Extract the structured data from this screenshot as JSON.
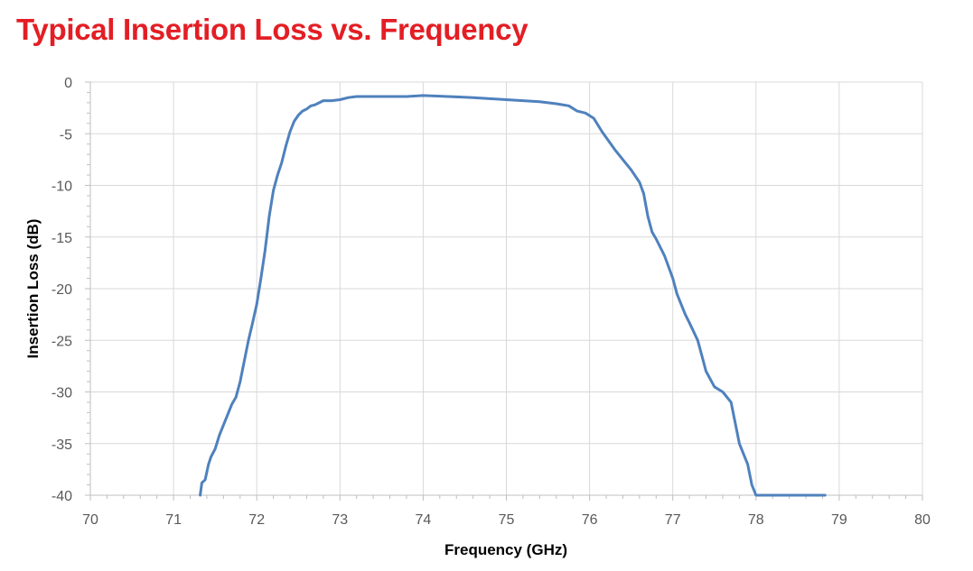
{
  "chart_data": {
    "type": "line",
    "title": "Typical Insertion Loss vs. Frequency",
    "xlabel": "Frequency (GHz)",
    "ylabel": "Insertion Loss (dB)",
    "xlim": [
      70,
      80
    ],
    "ylim": [
      -40,
      0
    ],
    "xticks": [
      "70",
      "71",
      "72",
      "73",
      "74",
      "75",
      "76",
      "77",
      "78",
      "79",
      "80"
    ],
    "yticks": [
      "0",
      "-5",
      "-10",
      "-15",
      "-20",
      "-25",
      "-30",
      "-35",
      "-40"
    ],
    "grid": true,
    "colors": {
      "line": "#4f81bd",
      "title": "#e31e24",
      "grid": "#d9d9d9",
      "axis": "#bfbfbf"
    },
    "series": [
      {
        "x": [
          71.32,
          71.34,
          71.38,
          71.42,
          71.45,
          71.5,
          71.55,
          71.6,
          71.65,
          71.7,
          71.75,
          71.8,
          71.85,
          71.9,
          71.95,
          72.0,
          72.05,
          72.1,
          72.15,
          72.2,
          72.25,
          72.3,
          72.35,
          72.4,
          72.45,
          72.5,
          72.55,
          72.6,
          72.65,
          72.7,
          72.75,
          72.8,
          72.9,
          73.0,
          73.1,
          73.2,
          73.3,
          73.5,
          73.7,
          73.8,
          74.0,
          74.3,
          74.6,
          75.0,
          75.2,
          75.4,
          75.6,
          75.75,
          75.85,
          75.95,
          76.05,
          76.15,
          76.3,
          76.4,
          76.5,
          76.6,
          76.65,
          76.7,
          76.75,
          76.8,
          76.9,
          77.0,
          77.05,
          77.1,
          77.15,
          77.2,
          77.3,
          77.35,
          77.4,
          77.5,
          77.6,
          77.7,
          77.75,
          77.8,
          77.9,
          77.95,
          78.0,
          78.2,
          78.4,
          78.6,
          78.8,
          78.83
        ],
        "y": [
          -40.0,
          -38.8,
          -38.5,
          -37.0,
          -36.3,
          -35.5,
          -34.2,
          -33.2,
          -32.2,
          -31.2,
          -30.5,
          -29.0,
          -27.0,
          -25.0,
          -23.3,
          -21.5,
          -19.0,
          -16.3,
          -13.0,
          -10.5,
          -9.0,
          -7.8,
          -6.2,
          -4.8,
          -3.8,
          -3.2,
          -2.8,
          -2.6,
          -2.3,
          -2.2,
          -2.0,
          -1.8,
          -1.8,
          -1.7,
          -1.5,
          -1.4,
          -1.4,
          -1.4,
          -1.4,
          -1.4,
          -1.3,
          -1.4,
          -1.5,
          -1.7,
          -1.8,
          -1.9,
          -2.1,
          -2.3,
          -2.8,
          -3.0,
          -3.5,
          -4.8,
          -6.5,
          -7.5,
          -8.5,
          -9.7,
          -10.8,
          -13.0,
          -14.5,
          -15.2,
          -16.8,
          -19.0,
          -20.5,
          -21.5,
          -22.5,
          -23.3,
          -25.0,
          -26.5,
          -28.0,
          -29.5,
          -30.0,
          -31.0,
          -33.0,
          -35.0,
          -37.0,
          -39.0,
          -40.0,
          -40.0,
          -40.0,
          -40.0,
          -40.0,
          -40.0
        ]
      }
    ]
  }
}
